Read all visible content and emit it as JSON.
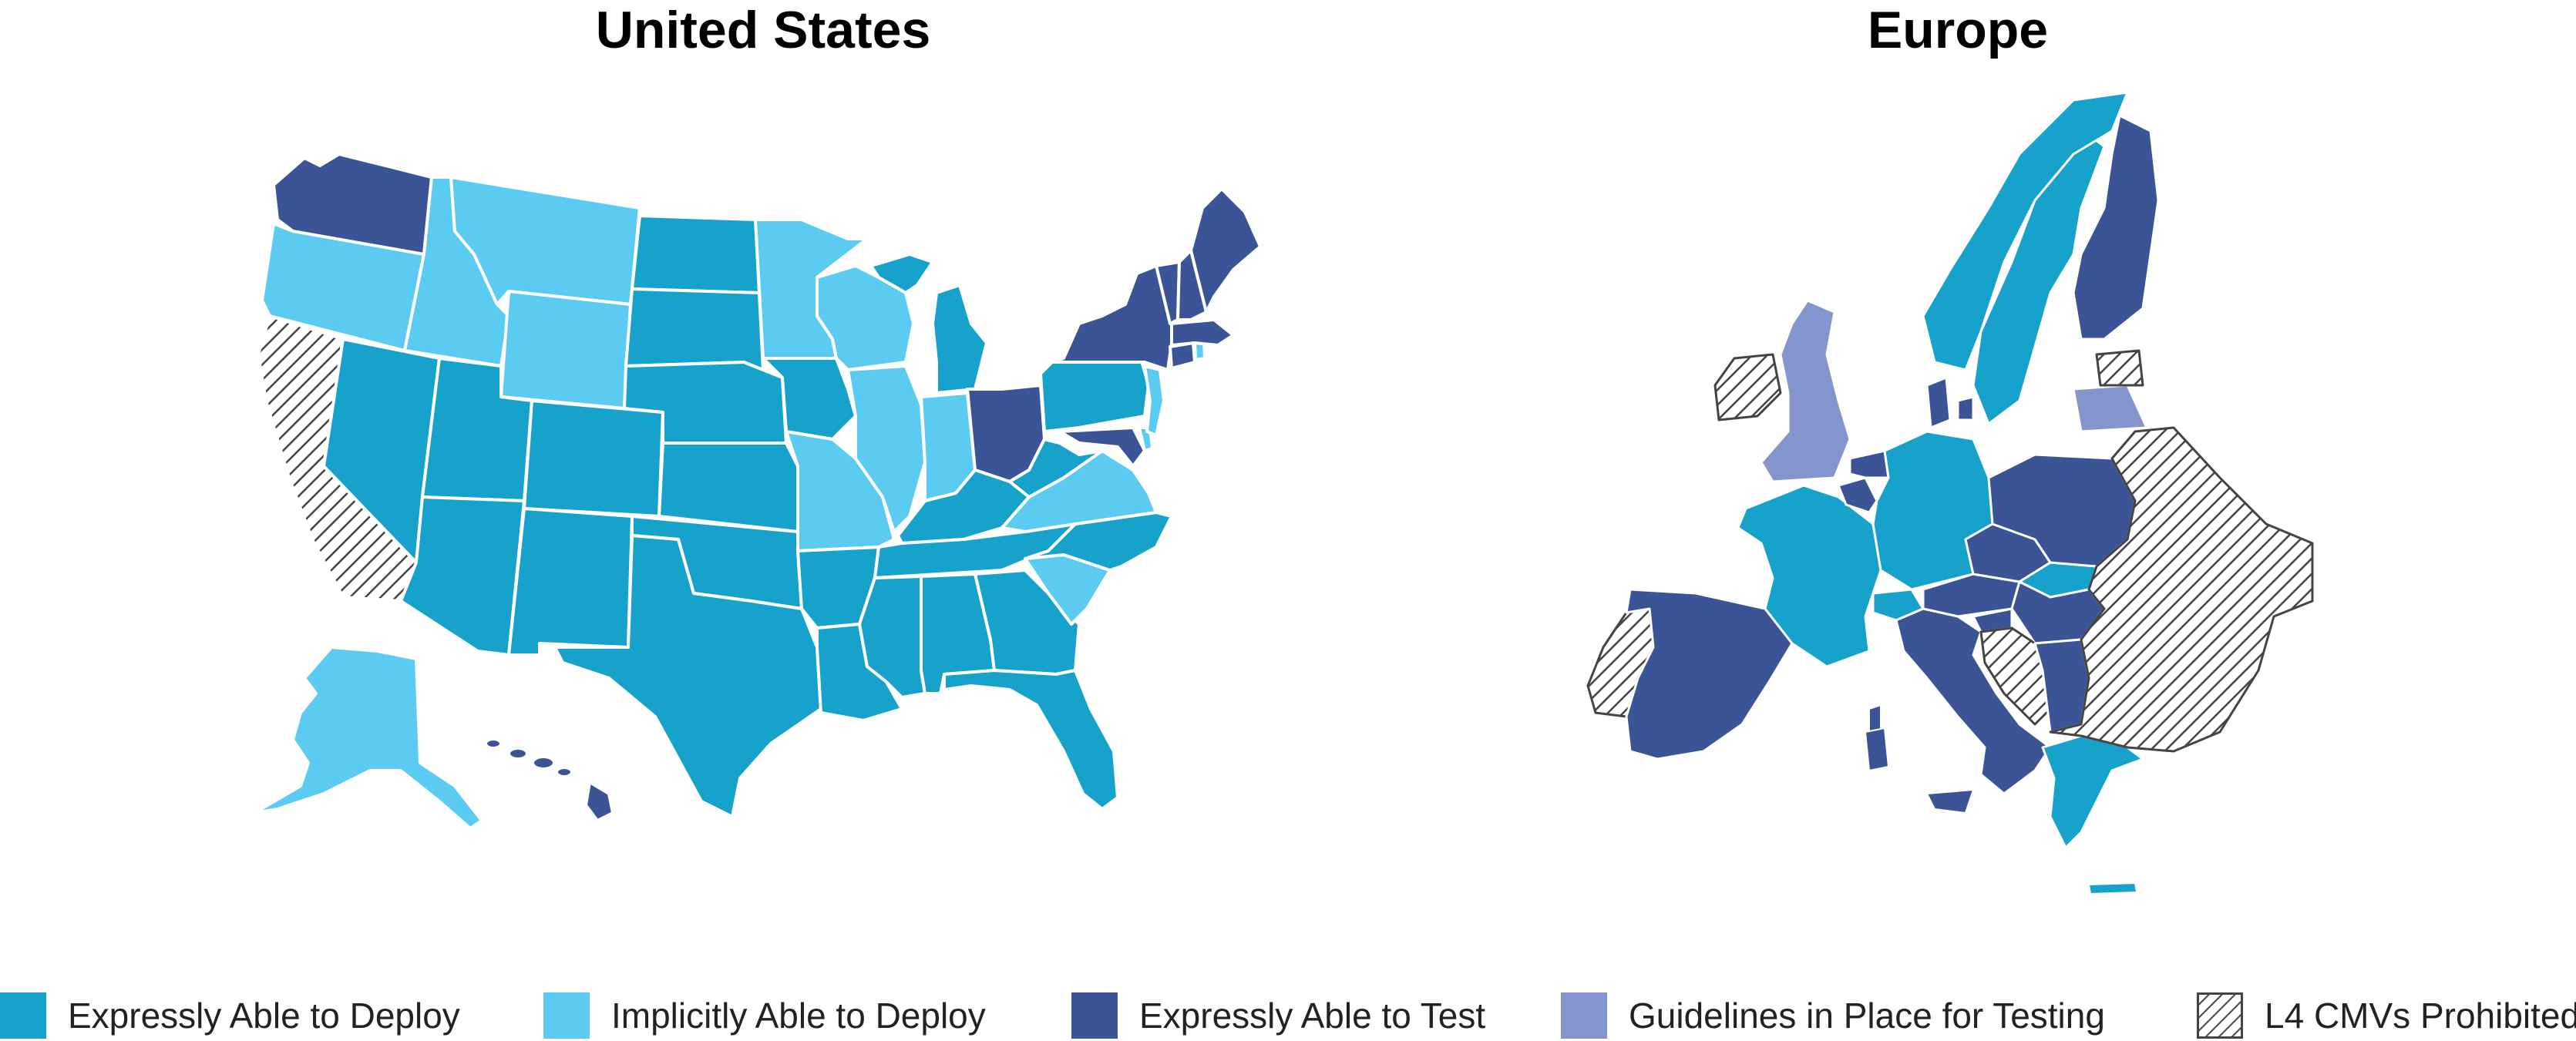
{
  "maps": {
    "us": {
      "title": "United States"
    },
    "europe": {
      "title": "Europe"
    }
  },
  "colors": {
    "expressly_deploy": "#17a2cc",
    "implicitly_deploy": "#5bcbf1",
    "expressly_test": "#3b5496",
    "guidelines_testing": "#8494cc",
    "prohibited_hatch": "#444444",
    "border": "#ffffff"
  },
  "legend": [
    {
      "key": "expressly_deploy",
      "label": "Expressly Able to Deploy"
    },
    {
      "key": "implicitly_deploy",
      "label": "Implicitly Able to Deploy"
    },
    {
      "key": "expressly_test",
      "label": "Expressly Able to Test"
    },
    {
      "key": "guidelines_testing",
      "label": "Guidelines in Place for Testing"
    },
    {
      "key": "prohibited",
      "label": "L4 CMVs Prohibited"
    }
  ]
}
